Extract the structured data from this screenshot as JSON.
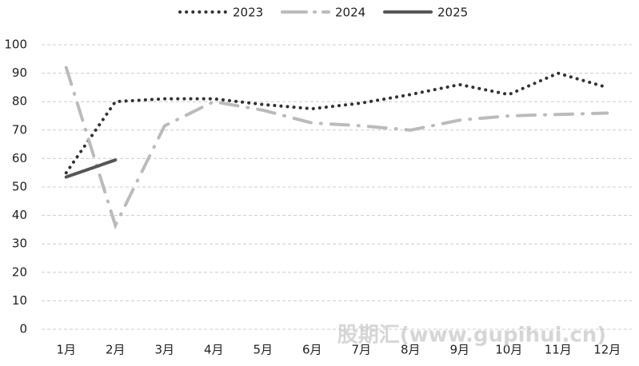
{
  "chart_data": {
    "type": "line",
    "categories": [
      "1月",
      "2月",
      "3月",
      "4月",
      "5月",
      "6月",
      "7月",
      "8月",
      "9月",
      "10月",
      "11月",
      "12月"
    ],
    "series": [
      {
        "name": "2023",
        "color": "#333333",
        "style": "dotted",
        "values": [
          55,
          80,
          81,
          81,
          79,
          77.5,
          79.5,
          82.5,
          86,
          82.5,
          90,
          85
        ]
      },
      {
        "name": "2024",
        "color": "#bbbbbb",
        "style": "dashdot",
        "values": [
          92,
          36.5,
          71.5,
          80,
          77,
          72.5,
          71.5,
          70,
          73.5,
          75,
          75.5,
          76
        ]
      },
      {
        "name": "2025",
        "color": "#555555",
        "style": "solid",
        "values": [
          53.5,
          59.5,
          null,
          null,
          null,
          null,
          null,
          null,
          null,
          null,
          null,
          null
        ]
      }
    ],
    "ylim": [
      0,
      100
    ],
    "yticks": [
      0,
      10,
      20,
      30,
      40,
      50,
      60,
      70,
      80,
      90,
      100
    ],
    "grid": true,
    "legend": "top",
    "watermark": "股期汇(www.gupihui.cn)"
  }
}
